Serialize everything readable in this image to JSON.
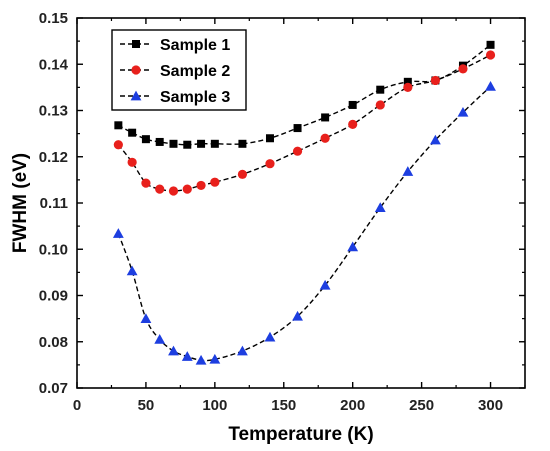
{
  "chart_data": {
    "type": "line",
    "title": "",
    "xlabel": "Temperature (K)",
    "ylabel": "FWHM (eV)",
    "xlim": [
      0,
      325
    ],
    "ylim": [
      0.07,
      0.15
    ],
    "xticks": [
      "0",
      "50",
      "100",
      "150",
      "200",
      "250",
      "300"
    ],
    "yticks": [
      "0.07",
      "0.08",
      "0.09",
      "0.10",
      "0.11",
      "0.12",
      "0.13",
      "0.14",
      "0.15"
    ],
    "grid": false,
    "legend_position": "top-left",
    "line_style": "dashed",
    "series": [
      {
        "name": "Sample 1",
        "marker": "square",
        "color": "#000000",
        "x": [
          30,
          40,
          50,
          60,
          70,
          80,
          90,
          100,
          120,
          140,
          160,
          180,
          200,
          220,
          240,
          260,
          280,
          300
        ],
        "y": [
          0.1268,
          0.1252,
          0.1238,
          0.1232,
          0.1228,
          0.1226,
          0.1228,
          0.1228,
          0.1228,
          0.124,
          0.1262,
          0.1285,
          0.1312,
          0.1345,
          0.1362,
          0.1365,
          0.1397,
          0.1442
        ]
      },
      {
        "name": "Sample 2",
        "marker": "circle",
        "color": "#e8201c",
        "x": [
          30,
          40,
          50,
          60,
          70,
          80,
          90,
          100,
          120,
          140,
          160,
          180,
          200,
          220,
          240,
          260,
          280,
          300
        ],
        "y": [
          0.1226,
          0.1188,
          0.1143,
          0.113,
          0.1126,
          0.113,
          0.1138,
          0.1145,
          0.1162,
          0.1185,
          0.1212,
          0.124,
          0.127,
          0.1312,
          0.135,
          0.1365,
          0.139,
          0.142
        ]
      },
      {
        "name": "Sample 3",
        "marker": "triangle",
        "color": "#1d3ee0",
        "x": [
          30,
          40,
          50,
          60,
          70,
          80,
          90,
          100,
          120,
          140,
          160,
          180,
          200,
          220,
          240,
          260,
          280,
          300
        ],
        "y": [
          0.1034,
          0.0953,
          0.085,
          0.0805,
          0.078,
          0.0768,
          0.076,
          0.0762,
          0.078,
          0.081,
          0.0855,
          0.0922,
          0.1005,
          0.109,
          0.1168,
          0.1236,
          0.1296,
          0.1352
        ]
      }
    ]
  }
}
